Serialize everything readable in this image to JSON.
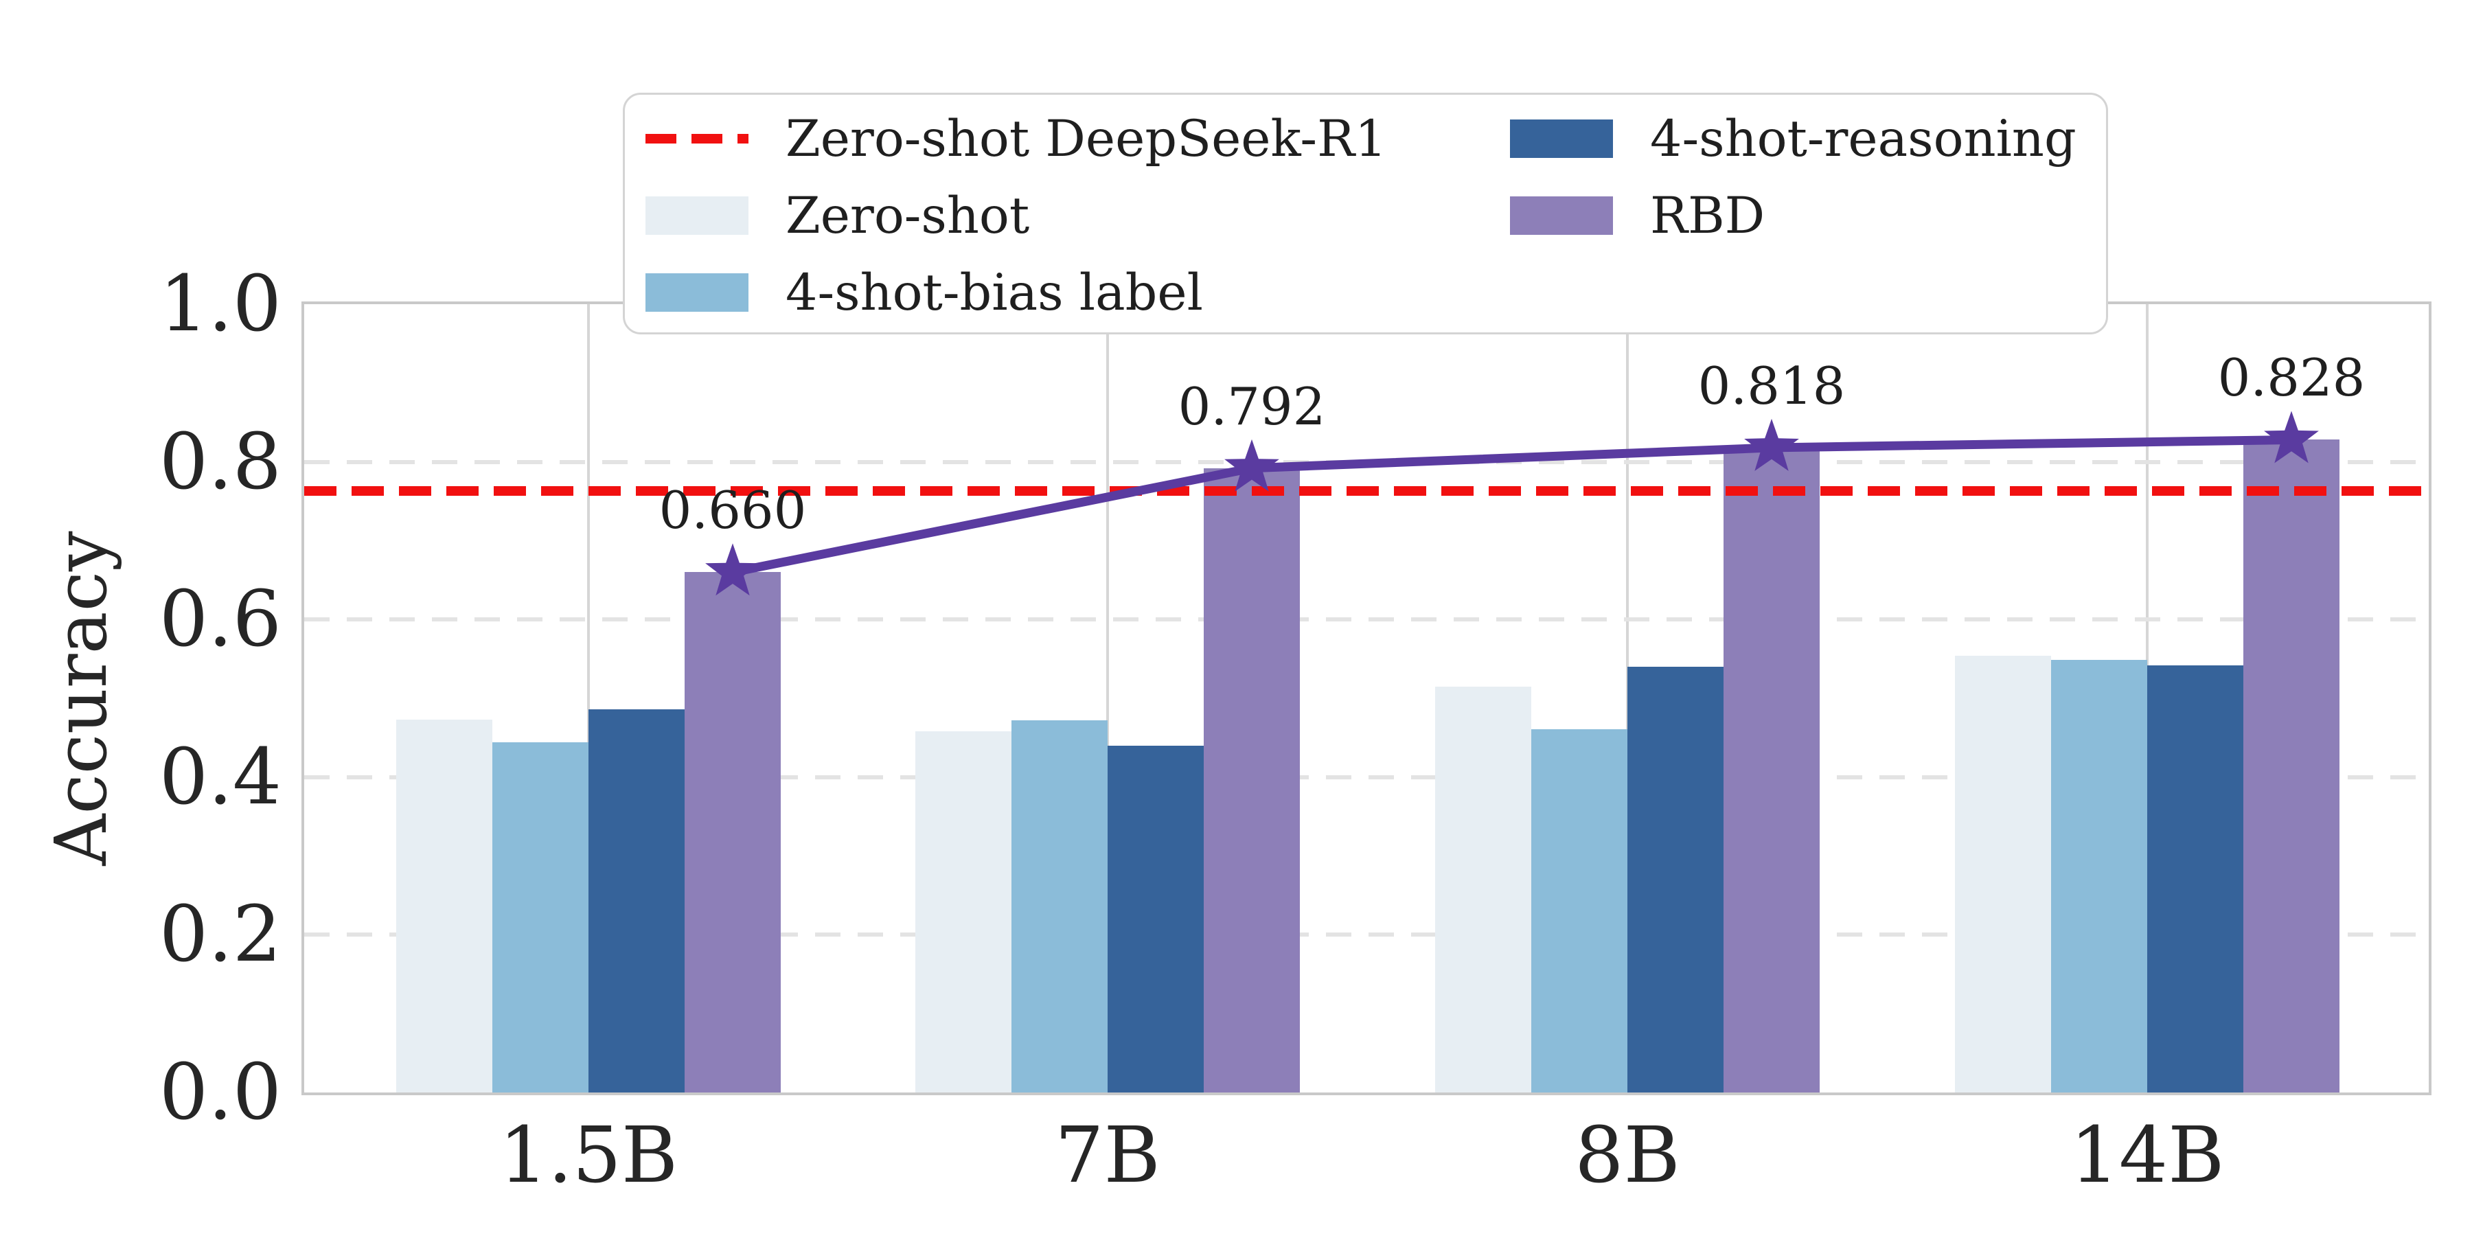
{
  "chart_data": {
    "type": "bar",
    "title": "",
    "xlabel": "",
    "ylabel": "Accuracy",
    "ylim": [
      0,
      1
    ],
    "yticks": [
      "0.0",
      "0.2",
      "0.4",
      "0.6",
      "0.8",
      "1.0"
    ],
    "categories": [
      "1.5B",
      "7B",
      "8B",
      "14B"
    ],
    "series": [
      {
        "name": "Zero-shot",
        "color": "#e7eef3",
        "values": [
          0.473,
          0.458,
          0.515,
          0.554
        ]
      },
      {
        "name": "4-shot-bias label",
        "color": "#8bbcd9",
        "values": [
          0.444,
          0.472,
          0.461,
          0.549
        ]
      },
      {
        "name": "4-shot-reasoning",
        "color": "#36639a",
        "values": [
          0.486,
          0.44,
          0.54,
          0.542
        ]
      },
      {
        "name": "RBD",
        "color": "#8d7fb8",
        "values": [
          0.66,
          0.792,
          0.818,
          0.828
        ]
      }
    ],
    "line_overlay": {
      "name": "RBD",
      "color": "#5a3ba0",
      "marker": "star",
      "values": [
        0.66,
        0.792,
        0.818,
        0.828
      ],
      "point_labels": [
        "0.660",
        "0.792",
        "0.818",
        "0.828"
      ]
    },
    "reference_line": {
      "label": "Zero-shot DeepSeek-R1",
      "value": 0.763,
      "color": "#f11010",
      "style": "dashed"
    },
    "grid": {
      "y": "dashed",
      "x": "solid-at-group-centers"
    },
    "legend_position": "upper center, two columns"
  },
  "legend": {
    "items": [
      {
        "label": "Zero-shot DeepSeek-R1",
        "swatch": "red-dashed-line",
        "color": "#f11010",
        "column": 1
      },
      {
        "label": "Zero-shot",
        "swatch": "patch",
        "color": "#e7eef3",
        "column": 1
      },
      {
        "label": "4-shot-bias label",
        "swatch": "patch",
        "color": "#8bbcd9",
        "column": 1
      },
      {
        "label": "4-shot-reasoning",
        "swatch": "patch",
        "color": "#36639a",
        "column": 2
      },
      {
        "label": "RBD",
        "swatch": "patch",
        "color": "#8d7fb8",
        "column": 2
      }
    ]
  },
  "colors": {
    "y_grid": "#e3e3e3",
    "x_grid": "#d6d6d6",
    "spine": "#c9c9c9",
    "tick_text": "#262626",
    "label_text": "#1f1f1f"
  }
}
